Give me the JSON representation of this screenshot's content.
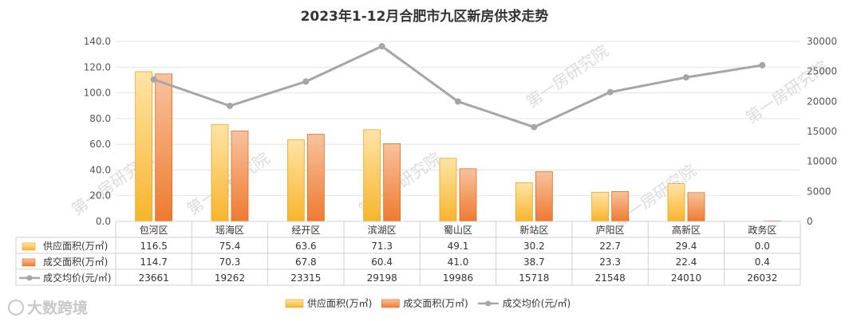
{
  "chart_data": {
    "type": "bar",
    "title": "2023年1-12月合肥市九区新房供求走势",
    "categories": [
      "包河区",
      "瑶海区",
      "经开区",
      "滨湖区",
      "蜀山区",
      "新站区",
      "庐阳区",
      "高新区",
      "政务区"
    ],
    "series": [
      {
        "name": "供应面积(万㎡)",
        "type": "bar",
        "axis": "left",
        "values": [
          116.5,
          75.4,
          63.6,
          71.3,
          49.1,
          30.2,
          22.7,
          29.4,
          0.0
        ],
        "display": [
          "116.5",
          "75.4",
          "63.6",
          "71.3",
          "49.1",
          "30.2",
          "22.7",
          "29.4",
          "0.0"
        ],
        "color": "#f6b93b"
      },
      {
        "name": "成交面积(万㎡)",
        "type": "bar",
        "axis": "right-left",
        "values": [
          114.7,
          70.3,
          67.8,
          60.4,
          41.0,
          38.7,
          23.3,
          22.4,
          0.4
        ],
        "display": [
          "114.7",
          "70.3",
          "67.8",
          "60.4",
          "41.0",
          "38.7",
          "23.3",
          "22.4",
          "0.4"
        ],
        "color": "#f07f3c"
      },
      {
        "name": "成交均价(元/㎡)",
        "type": "line",
        "axis": "right",
        "values": [
          23661,
          19262,
          23315,
          29198,
          19986,
          15718,
          21548,
          24010,
          26032
        ],
        "display": [
          "23661",
          "19262",
          "23315",
          "29198",
          "19986",
          "15718",
          "21548",
          "24010",
          "26032"
        ],
        "color": "#a6a6a6"
      }
    ],
    "y_left": {
      "min": 0,
      "max": 140,
      "ticks": [
        "0.0",
        "20.0",
        "40.0",
        "60.0",
        "80.0",
        "100.0",
        "120.0",
        "140.0"
      ]
    },
    "y_right": {
      "min": 0,
      "max": 30000,
      "ticks": [
        "0",
        "5000",
        "10000",
        "15000",
        "20000",
        "25000",
        "30000"
      ]
    },
    "grid": true,
    "legend": "bottom"
  },
  "watermark": "第一房研究院",
  "logo_text": "大数跨境"
}
